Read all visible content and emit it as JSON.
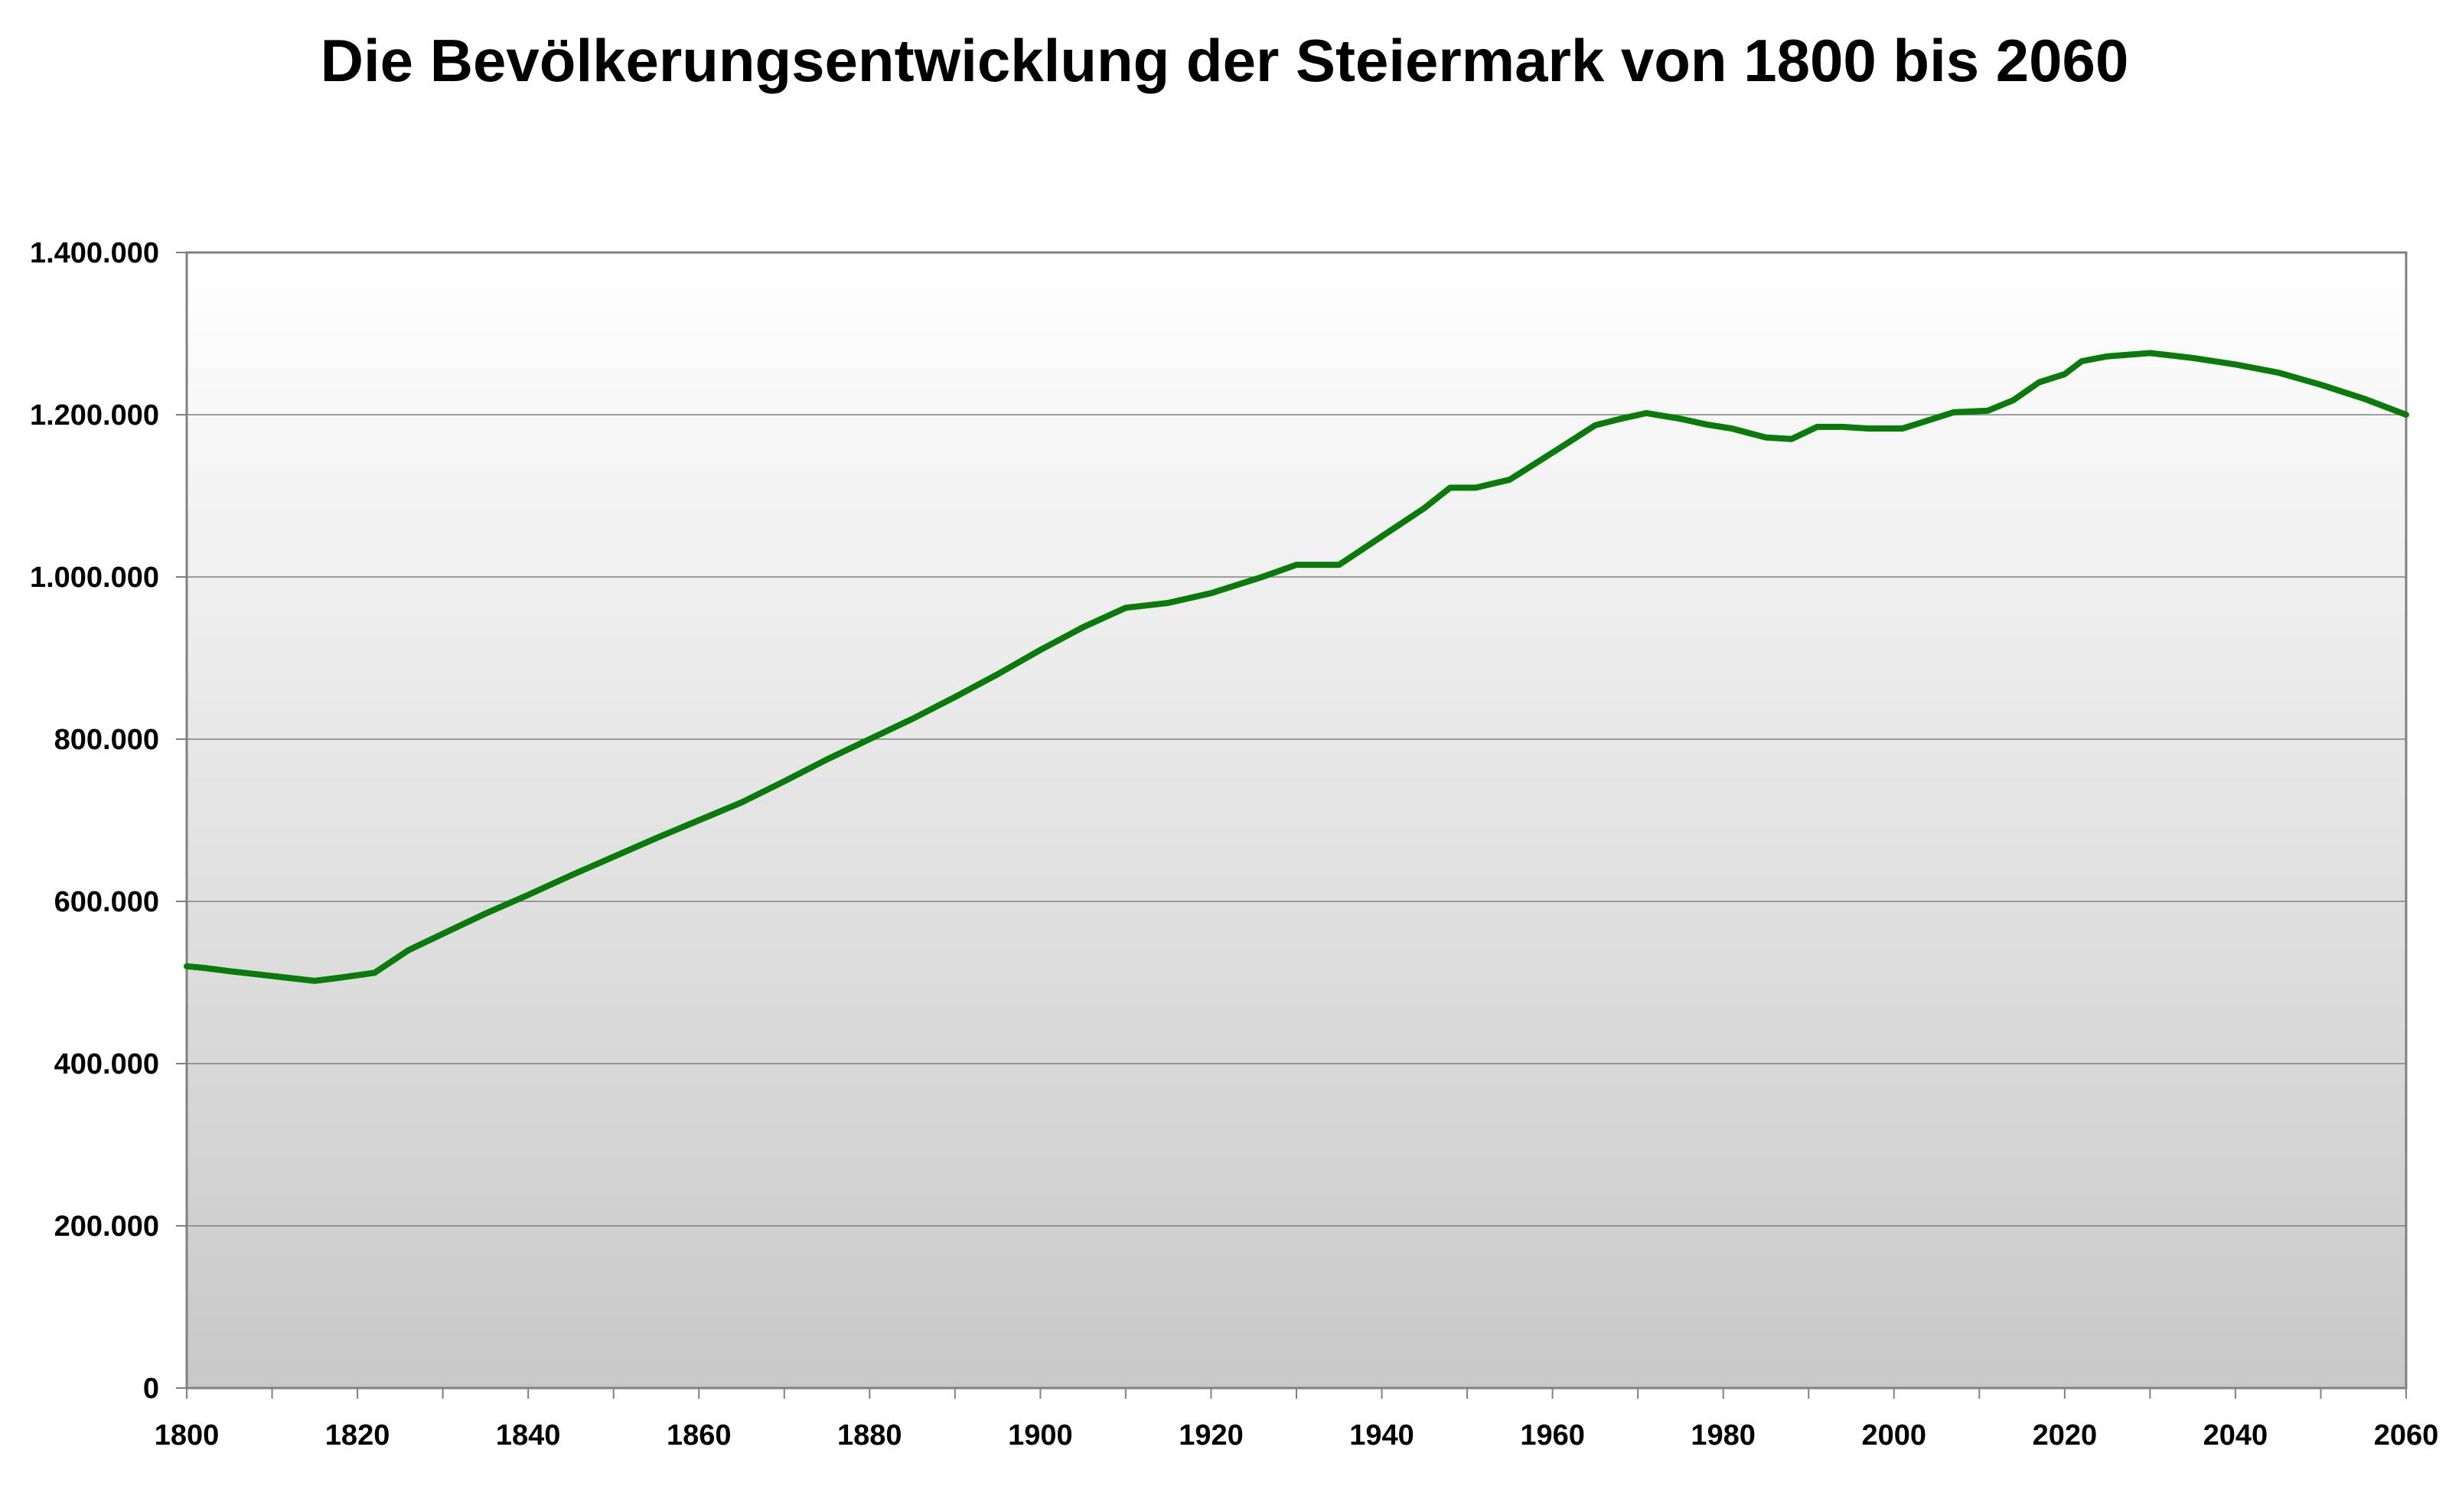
{
  "chart_data": {
    "type": "line",
    "title": "Die Bevölkerungsentwicklung der Steiermark von 1800 bis 2060",
    "xlabel": "",
    "ylabel": "",
    "xlim": [
      1800,
      2060
    ],
    "ylim": [
      0,
      1400000
    ],
    "grid": true,
    "legend": "none",
    "x_ticks": [
      1800,
      1820,
      1840,
      1860,
      1880,
      1900,
      1920,
      1940,
      1960,
      1980,
      2000,
      2020,
      2040,
      2060
    ],
    "x_tick_labels": [
      "1800",
      "1820",
      "1840",
      "1860",
      "1880",
      "1900",
      "1920",
      "1940",
      "1960",
      "1980",
      "2000",
      "2020",
      "2040",
      "2060"
    ],
    "y_ticks": [
      0,
      200000,
      400000,
      600000,
      800000,
      1000000,
      1200000,
      1400000
    ],
    "y_tick_labels": [
      "0",
      "200.000",
      "400.000",
      "600.000",
      "800.000",
      "1.000.000",
      "1.200.000",
      "1.400.000"
    ],
    "colors": {
      "line": "#0a7a0a",
      "grid": "#808080",
      "axis": "#808080",
      "bg_top": "#ffffff",
      "bg_bottom": "#c8c8c8"
    },
    "series": [
      {
        "x": [
          1800,
          1802,
          1805,
          1810,
          1815,
          1818,
          1822,
          1826,
          1830,
          1835,
          1840,
          1845,
          1850,
          1855,
          1860,
          1865,
          1870,
          1875,
          1880,
          1885,
          1890,
          1895,
          1900,
          1905,
          1910,
          1915,
          1920,
          1923,
          1926,
          1930,
          1935,
          1940,
          1945,
          1948,
          1951,
          1955,
          1958,
          1961,
          1965,
          1968,
          1971,
          1975,
          1978,
          1981,
          1985,
          1988,
          1991,
          1994,
          1997,
          2001,
          2004,
          2007,
          2011,
          2014,
          2017,
          2020,
          2022,
          2025,
          2030,
          2035,
          2040,
          2045,
          2050,
          2055,
          2060
        ],
        "y": [
          520000,
          518000,
          514000,
          508000,
          502000,
          506000,
          512000,
          540000,
          560000,
          585000,
          608000,
          632000,
          655000,
          678000,
          700000,
          722000,
          748000,
          775000,
          800000,
          825000,
          852000,
          880000,
          910000,
          938000,
          962000,
          968000,
          980000,
          990000,
          1000000,
          1015000,
          1015000,
          1050000,
          1085000,
          1110000,
          1110000,
          1120000,
          1140000,
          1160000,
          1187000,
          1195000,
          1202000,
          1195000,
          1188000,
          1183000,
          1172000,
          1170000,
          1185000,
          1185000,
          1183000,
          1183000,
          1193000,
          1203000,
          1205000,
          1218000,
          1240000,
          1250000,
          1266000,
          1272000,
          1276000,
          1270000,
          1262000,
          1252000,
          1237000,
          1220000,
          1200000
        ]
      }
    ]
  }
}
